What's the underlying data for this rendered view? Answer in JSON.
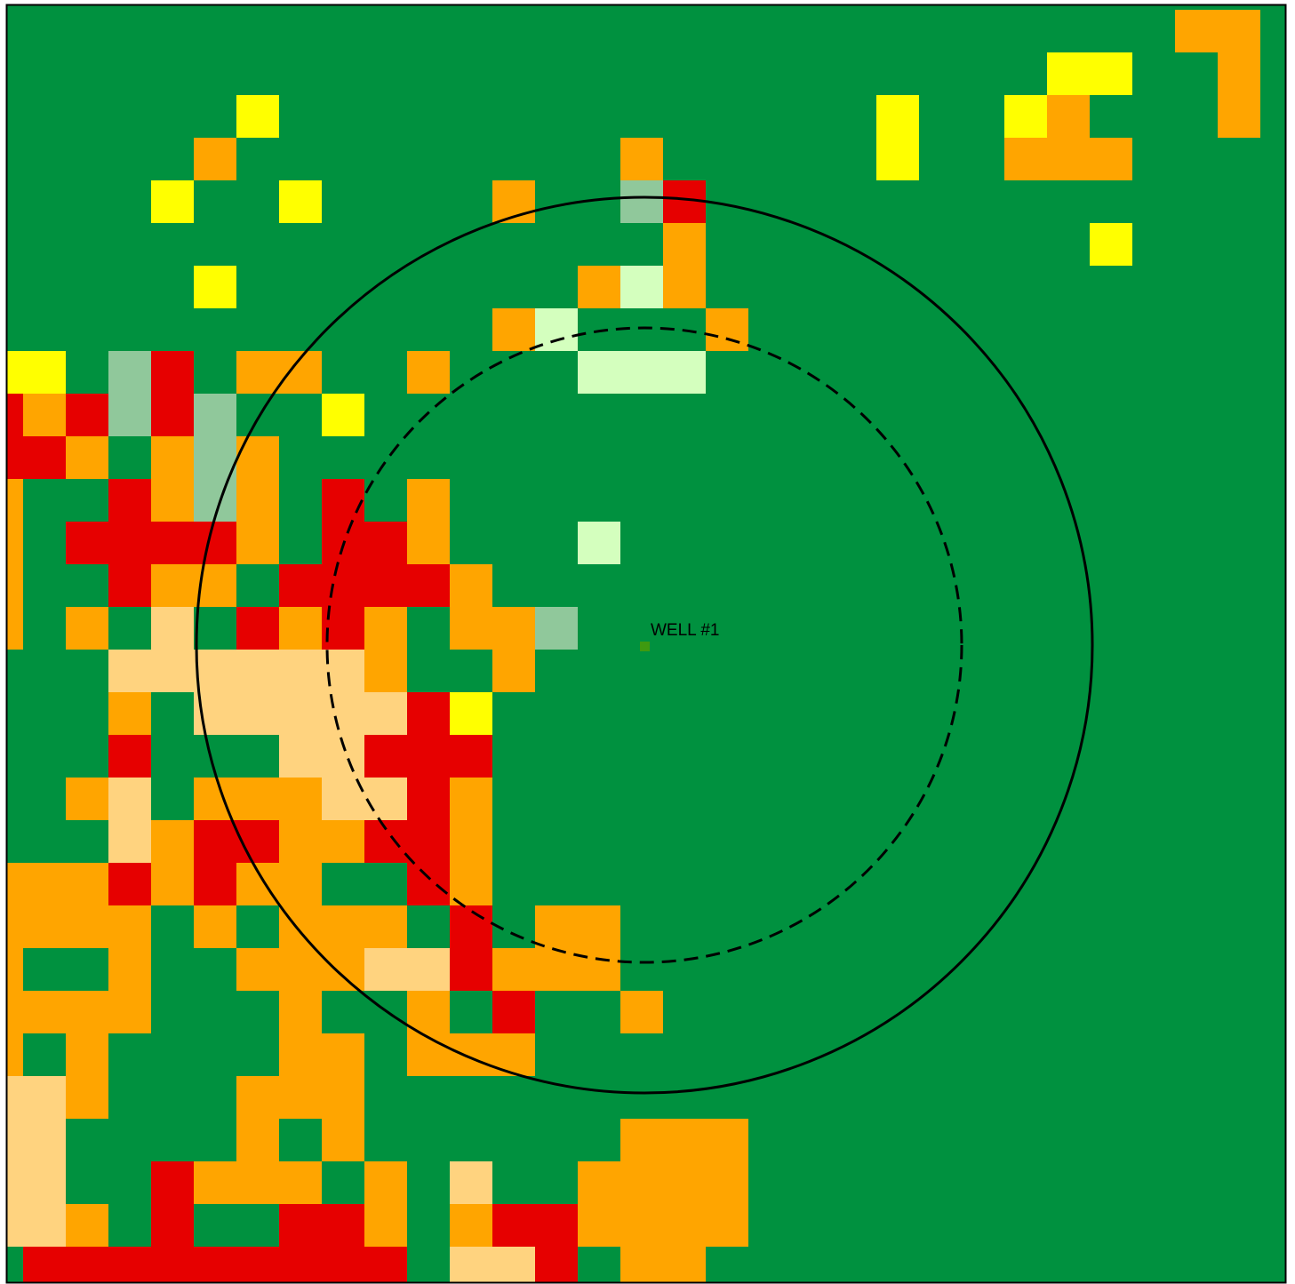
{
  "well": {
    "label": "WELL #1"
  }
}
